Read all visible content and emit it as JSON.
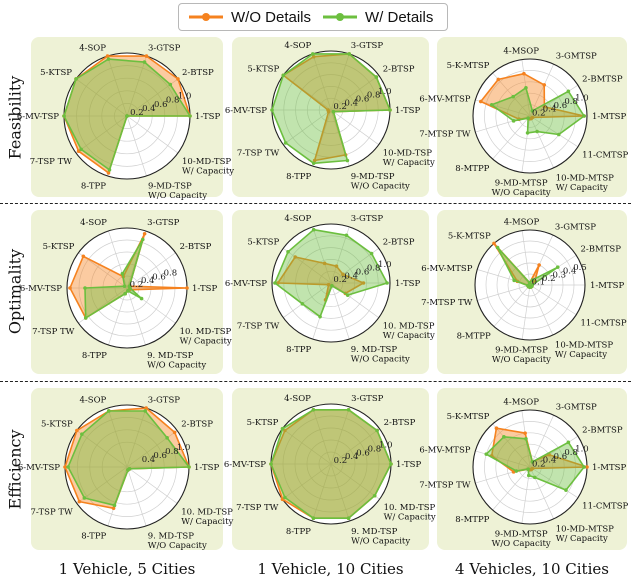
{
  "legend": {
    "series": [
      {
        "name": "W/O Details",
        "color": "#f5821f"
      },
      {
        "name": "W/ Details",
        "color": "#6cbf3f"
      }
    ]
  },
  "row_labels": [
    "Feasibility",
    "Optimality",
    "Efficiency"
  ],
  "col_labels": [
    "1 Vehicle, 5 Cities",
    "1 Vehicle, 10 Cities",
    "4 Vehicles, 10 Cities"
  ],
  "chart_data": [
    {
      "type": "radar",
      "row": "Feasibility",
      "column": "1 Vehicle, 5 Cities",
      "categories": [
        "1-TSP",
        "2-BTSP",
        "3-GTSP",
        "4-SOP",
        "5-KTSP",
        "6-MV-TSP",
        "7-TSP TW",
        "8-TPP",
        "9-MD-TSP W/O Capacity",
        "10-MD-TSP W/ Capacity"
      ],
      "rmax": 1.0,
      "ticks": [
        0.2,
        0.4,
        0.6,
        0.8,
        1.0
      ],
      "series": [
        {
          "name": "W/O Details",
          "values": [
            1.0,
            1.0,
            1.0,
            1.0,
            1.0,
            1.0,
            0.95,
            0.95,
            0.0,
            0.0
          ]
        },
        {
          "name": "W/ Details",
          "values": [
            1.0,
            0.85,
            0.9,
            0.95,
            1.0,
            1.0,
            0.9,
            0.9,
            0.0,
            0.0
          ]
        }
      ]
    },
    {
      "type": "radar",
      "row": "Feasibility",
      "column": "1 Vehicle, 10 Cities",
      "categories": [
        "1-TSP",
        "2-BTSP",
        "3-GTSP",
        "4-SOP",
        "5-KTSP",
        "6-MV-TSP",
        "7-TSP TW",
        "8-TPP",
        "9-MD-TSP W/O Capacity",
        "10-MD-TSP W/ Capacity"
      ],
      "rmax": 1.0,
      "ticks": [
        0.2,
        0.4,
        0.6,
        0.8,
        1.0
      ],
      "series": [
        {
          "name": "W/O Details",
          "values": [
            1.0,
            0.95,
            1.0,
            0.95,
            1.0,
            0.05,
            0.05,
            0.9,
            0.8,
            0.05
          ]
        },
        {
          "name": "W/ Details",
          "values": [
            1.0,
            0.95,
            1.0,
            1.0,
            1.0,
            1.0,
            0.95,
            0.95,
            0.9,
            0.05
          ]
        }
      ]
    },
    {
      "type": "radar",
      "row": "Feasibility",
      "column": "4 Vehicles, 10 Cities",
      "categories": [
        "1-MTSP",
        "2-BMTSP",
        "3-GMTSP",
        "4-MSOP",
        "5-K-MTSP",
        "6-MV-MTSP",
        "7-MTSP TW",
        "8-MTPP",
        "9-MD-MTSP W/O Capacity",
        "10-MD-MTSP W/ Capacity",
        "11-CMTSP"
      ],
      "rmax": 1.0,
      "ticks": [
        0.2,
        0.4,
        0.6,
        0.8,
        1.0
      ],
      "series": [
        {
          "name": "W/O Details",
          "values": [
            0.95,
            0.3,
            0.6,
            0.75,
            0.85,
            0.9,
            0.2,
            0.05,
            0.05,
            0.05,
            0.05
          ]
        },
        {
          "name": "W/ Details",
          "values": [
            0.95,
            0.8,
            0.1,
            0.5,
            0.45,
            0.7,
            0.3,
            0.05,
            0.3,
            0.3,
            0.6
          ]
        }
      ]
    },
    {
      "type": "radar",
      "row": "Optimality",
      "column": "1 Vehicle, 5 Cities",
      "categories": [
        "1-TSP",
        "2-BTSP",
        "3-GTSP",
        "4-SOP",
        "5-KTSP",
        "6-MV-TSP",
        "7-TSP TW",
        "8-TPP",
        "9. MD-TSP W/O Capacity",
        "10. MD-TSP W/ Capacity"
      ],
      "rmax": 1.0,
      "ticks": [
        0.2,
        0.4,
        0.6,
        0.8
      ],
      "series": [
        {
          "name": "W/O Details",
          "values": [
            1.0,
            0.05,
            0.95,
            0.2,
            0.9,
            0.95,
            0.85,
            0.1,
            0.05,
            0.05
          ]
        },
        {
          "name": "W/ Details",
          "values": [
            0.05,
            0.05,
            0.85,
            0.25,
            0.05,
            0.7,
            0.85,
            0.1,
            0.05,
            0.3
          ]
        }
      ]
    },
    {
      "type": "radar",
      "row": "Optimality",
      "column": "1 Vehicle, 10 Cities",
      "categories": [
        "1-TSP",
        "2-BTSP",
        "3-GTSP",
        "4-SOP",
        "5-KTSP",
        "6-MV-TSP",
        "7-TSP TW",
        "8-TPP",
        "9. MD-TSP W/O Capacity",
        "10. MD-TSP W/ Capacity"
      ],
      "rmax": 1.0,
      "ticks": [
        0.2,
        0.4,
        0.6,
        0.8,
        1.0
      ],
      "series": [
        {
          "name": "W/O Details",
          "values": [
            0.55,
            0.25,
            0.3,
            0.35,
            0.75,
            0.9,
            0.05,
            0.3,
            0.05,
            0.3
          ]
        },
        {
          "name": "W/ Details",
          "values": [
            0.95,
            0.85,
            0.85,
            0.95,
            0.9,
            0.95,
            0.6,
            0.6,
            0.05,
            0.35
          ]
        }
      ]
    },
    {
      "type": "radar",
      "row": "Optimality",
      "column": "4 Vehicles, 10 Cities",
      "categories": [
        "1-MTSP",
        "2-BMTSP",
        "3-GMTSP",
        "4-MSOP",
        "5-K-MTSP",
        "6-MV-MTSP",
        "7-MTSP TW",
        "8-MTPP",
        "9-MD-MTSP W/O Capacity",
        "10-MD-MTSP W/ Capacity",
        "11-CMTSP"
      ],
      "rmax": 0.5,
      "ticks": [
        0.1,
        0.2,
        0.3,
        0.4,
        0.5
      ],
      "series": [
        {
          "name": "W/O Details",
          "values": [
            0.02,
            0.05,
            0.2,
            0.02,
            0.5,
            0.12,
            0.02,
            0.02,
            0.02,
            0.02,
            0.02
          ]
        },
        {
          "name": "W/ Details",
          "values": [
            0.02,
            0.3,
            0.05,
            0.02,
            0.45,
            0.15,
            0.02,
            0.02,
            0.02,
            0.02,
            0.02
          ]
        }
      ]
    },
    {
      "type": "radar",
      "row": "Efficiency",
      "column": "1 Vehicle, 5 Cities",
      "categories": [
        "1-TSP",
        "2-BTSP",
        "3-GTSP",
        "4-SOP",
        "5-KTSP",
        "6-MV-TSP",
        "7-TSP TW",
        "8-TPP",
        "9. MD-TSP W/O Capacity",
        "10. MD-TSP W/ Capacity"
      ],
      "rmax": 1.0,
      "ticks": [
        0.4,
        0.6,
        0.8,
        1.0
      ],
      "series": [
        {
          "name": "W/O Details",
          "values": [
            1.0,
            0.95,
            1.0,
            0.95,
            1.0,
            1.0,
            0.95,
            0.7,
            0.05,
            0.05
          ]
        },
        {
          "name": "W/ Details",
          "values": [
            1.0,
            0.8,
            0.95,
            0.95,
            0.9,
            0.95,
            0.85,
            0.65,
            0.05,
            0.05
          ]
        }
      ]
    },
    {
      "type": "radar",
      "row": "Efficiency",
      "column": "1 Vehicle, 10 Cities",
      "categories": [
        "1-TSP",
        "2-BTSP",
        "3-GTSP",
        "4-SOP",
        "5-KTSP",
        "6-MV-TSP",
        "7-TSP TW",
        "8-TPP",
        "9. MD-TSP W/O Capacity",
        "10. MD-TSP W/ Capacity"
      ],
      "rmax": 1.0,
      "ticks": [
        0.2,
        0.4,
        0.6,
        0.8,
        1.0
      ],
      "series": [
        {
          "name": "W/O Details",
          "values": [
            1.0,
            0.95,
            0.95,
            0.95,
            0.95,
            1.0,
            1.0,
            0.95,
            0.95,
            0.9
          ]
        },
        {
          "name": "W/ Details",
          "values": [
            1.0,
            0.95,
            0.95,
            0.95,
            1.0,
            1.0,
            0.95,
            0.95,
            0.95,
            0.9
          ]
        }
      ]
    },
    {
      "type": "radar",
      "row": "Efficiency",
      "column": "4 Vehicles, 10 Cities",
      "categories": [
        "1-MTSP",
        "2-BMTSP",
        "3-GMTSP",
        "4-MSOP",
        "5-K-MTSP",
        "6-MV-MTSP",
        "7-MTSP TW",
        "8-MTPP",
        "9-MD-MTSP W/O Capacity",
        "10-MD-MTSP W/ Capacity",
        "11-CMTSP"
      ],
      "rmax": 1.0,
      "ticks": [
        0.2,
        0.4,
        0.6,
        0.8,
        1.0
      ],
      "series": [
        {
          "name": "W/O Details",
          "values": [
            1.0,
            0.4,
            0.1,
            0.6,
            0.9,
            0.7,
            0.3,
            0.05,
            0.05,
            0.05,
            0.05
          ]
        },
        {
          "name": "W/ Details",
          "values": [
            0.95,
            0.8,
            0.1,
            0.5,
            0.7,
            0.8,
            0.25,
            0.05,
            0.15,
            0.2,
            0.75
          ]
        }
      ]
    }
  ]
}
